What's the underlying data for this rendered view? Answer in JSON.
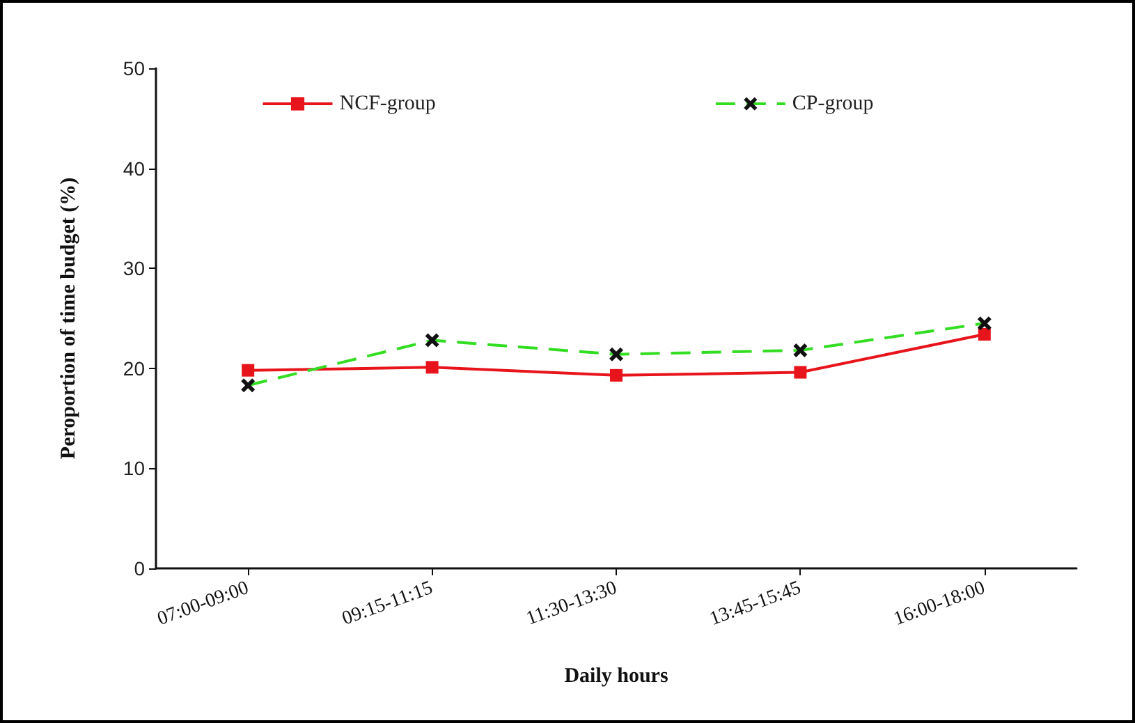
{
  "chart_data": {
    "type": "line",
    "xlabel": "Daily hours",
    "ylabel": "Peroportion of time budget (%)",
    "categories": [
      "07:00-09:00",
      "09:15-11:15",
      "11:30-13:30",
      "13:45-15:45",
      "16:00-18:00"
    ],
    "series": [
      {
        "name": "NCF-group",
        "color": "#e8141b",
        "marker": "square",
        "line_style": "solid",
        "values": [
          19.8,
          20.1,
          19.3,
          19.6,
          23.4
        ]
      },
      {
        "name": "CP-group",
        "color": "#33dd22",
        "marker": "cross",
        "line_style": "dashed",
        "values": [
          18.3,
          22.8,
          21.4,
          21.8,
          24.5
        ]
      }
    ],
    "ylim": [
      0,
      50
    ],
    "yticks": [
      0,
      10,
      20,
      30,
      40,
      50
    ],
    "grid": false,
    "legend": "top"
  }
}
